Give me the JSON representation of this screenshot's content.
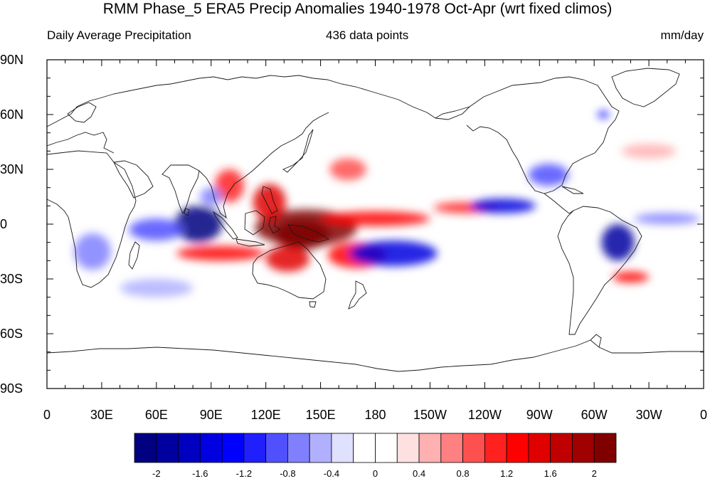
{
  "title": "RMM Phase_5 ERA5 Precip Anomalies 1940-1978 Oct-Apr (wrt fixed climos)",
  "subtitle_left": "Daily Average Precipitation",
  "subtitle_center": "436 data points",
  "subtitle_right": "mm/day",
  "map": {
    "projection": "cylindrical-equidistant",
    "lon_range": [
      0,
      360
    ],
    "lat_range": [
      -90,
      90
    ],
    "lat_ticks": [
      {
        "lat": 90,
        "label": "90N"
      },
      {
        "lat": 60,
        "label": "60N"
      },
      {
        "lat": 30,
        "label": "30N"
      },
      {
        "lat": 0,
        "label": "0"
      },
      {
        "lat": -30,
        "label": "30S"
      },
      {
        "lat": -60,
        "label": "60S"
      },
      {
        "lat": -90,
        "label": "90S"
      }
    ],
    "lon_ticks": [
      {
        "lon": 0,
        "label": "0"
      },
      {
        "lon": 30,
        "label": "30E"
      },
      {
        "lon": 60,
        "label": "60E"
      },
      {
        "lon": 90,
        "label": "90E"
      },
      {
        "lon": 120,
        "label": "120E"
      },
      {
        "lon": 150,
        "label": "150E"
      },
      {
        "lon": 180,
        "label": "180"
      },
      {
        "lon": 210,
        "label": "150W"
      },
      {
        "lon": 240,
        "label": "120W"
      },
      {
        "lon": 270,
        "label": "90W"
      },
      {
        "lon": 300,
        "label": "60W"
      },
      {
        "lon": 330,
        "label": "30W"
      },
      {
        "lon": 360,
        "label": "0"
      }
    ]
  },
  "colorbar": {
    "levels": [
      -2.2,
      -2,
      -1.8,
      -1.6,
      -1.4,
      -1.2,
      -1,
      -0.8,
      -0.6,
      -0.4,
      -0.2,
      0,
      0.2,
      0.4,
      0.6,
      0.8,
      1,
      1.2,
      1.4,
      1.6,
      1.8,
      2,
      2.2
    ],
    "colors": [
      "#000080",
      "#0000a0",
      "#0000c0",
      "#0000e0",
      "#0000ff",
      "#2020ff",
      "#5050ff",
      "#8080ff",
      "#b0b0ff",
      "#e0e0ff",
      "#ffffff",
      "#ffffff",
      "#ffe0e0",
      "#ffb0b0",
      "#ff8080",
      "#ff5050",
      "#ff2020",
      "#ff0000",
      "#e00000",
      "#c00000",
      "#a00000",
      "#800000"
    ],
    "tick_labels": [
      {
        "value": -2,
        "label": "-2"
      },
      {
        "value": -1.6,
        "label": "-1.6"
      },
      {
        "value": -1.2,
        "label": "-1.2"
      },
      {
        "value": -0.8,
        "label": "-0.8"
      },
      {
        "value": -0.4,
        "label": "-0.4"
      },
      {
        "value": 0,
        "label": "0"
      },
      {
        "value": 0.4,
        "label": "0.4"
      },
      {
        "value": 0.8,
        "label": "0.8"
      },
      {
        "value": 1.2,
        "label": "1.2"
      },
      {
        "value": 1.6,
        "label": "1.6"
      },
      {
        "value": 2,
        "label": "2"
      }
    ]
  },
  "anomaly_regions": [
    {
      "name": "maritime-continent-west-pacific",
      "lon": 142,
      "lat": -2,
      "rx": 28,
      "ry": 10,
      "value": 2.2
    },
    {
      "name": "new-guinea-core",
      "lon": 140,
      "lat": -6,
      "rx": 15,
      "ry": 8,
      "value": 2.2
    },
    {
      "name": "equatorial-pacific-band",
      "lon": 180,
      "lat": 3,
      "rx": 30,
      "ry": 4,
      "value": 1.2
    },
    {
      "name": "south-china-sea",
      "lon": 122,
      "lat": 12,
      "rx": 9,
      "ry": 10,
      "value": 1.4
    },
    {
      "name": "indochina",
      "lon": 100,
      "lat": 21,
      "rx": 8,
      "ry": 9,
      "value": 1.0
    },
    {
      "name": "spcz-west",
      "lon": 170,
      "lat": -17,
      "rx": 16,
      "ry": 7,
      "value": 1.2
    },
    {
      "name": "australia-north",
      "lon": 132,
      "lat": -19,
      "rx": 12,
      "ry": 7,
      "value": 1.4
    },
    {
      "name": "south-indian-band",
      "lon": 95,
      "lat": -16,
      "rx": 24,
      "ry": 4,
      "value": 1.2
    },
    {
      "name": "central-east-pacific",
      "lon": 230,
      "lat": 9,
      "rx": 18,
      "ry": 3,
      "value": 1.0
    },
    {
      "name": "north-pacific-storm-track",
      "lon": 165,
      "lat": 30,
      "rx": 10,
      "ry": 6,
      "value": 0.8
    },
    {
      "name": "central-indian-ocean",
      "lon": 83,
      "lat": 0,
      "rx": 13,
      "ry": 10,
      "value": -2.2
    },
    {
      "name": "west-indian-ocean",
      "lon": 60,
      "lat": -3,
      "rx": 15,
      "ry": 6,
      "value": -1.0
    },
    {
      "name": "bay-of-bengal",
      "lon": 90,
      "lat": 15,
      "rx": 6,
      "ry": 5,
      "value": -0.8
    },
    {
      "name": "south-pacific-dry",
      "lon": 190,
      "lat": -16,
      "rx": 24,
      "ry": 7,
      "value": -1.6
    },
    {
      "name": "east-pacific-itcz",
      "lon": 250,
      "lat": 10,
      "rx": 18,
      "ry": 4,
      "value": -1.6
    },
    {
      "name": "brazil",
      "lon": 313,
      "lat": -10,
      "rx": 9,
      "ry": 10,
      "value": -2.0
    },
    {
      "name": "gulf-of-mexico",
      "lon": 275,
      "lat": 27,
      "rx": 11,
      "ry": 6,
      "value": -1.0
    },
    {
      "name": "tropical-atlantic",
      "lon": 340,
      "lat": 3,
      "rx": 18,
      "ry": 3,
      "value": -0.8
    },
    {
      "name": "south-africa",
      "lon": 25,
      "lat": -15,
      "rx": 10,
      "ry": 10,
      "value": -0.8
    },
    {
      "name": "south-atlantic-sacz",
      "lon": 320,
      "lat": -29,
      "rx": 10,
      "ry": 3,
      "value": 1.2
    },
    {
      "name": "labrador",
      "lon": 305,
      "lat": 60,
      "rx": 3,
      "ry": 2,
      "value": -1.4
    },
    {
      "name": "southern-indian-ocean",
      "lon": 60,
      "lat": -35,
      "rx": 20,
      "ry": 5,
      "value": -0.6
    },
    {
      "name": "north-atlantic",
      "lon": 330,
      "lat": 40,
      "rx": 15,
      "ry": 4,
      "value": 0.4
    }
  ]
}
